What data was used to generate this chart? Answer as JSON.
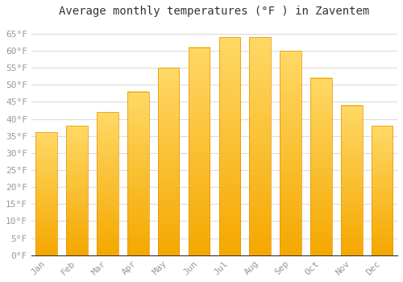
{
  "title": "Average monthly temperatures (°F ) in Zaventem",
  "months": [
    "Jan",
    "Feb",
    "Mar",
    "Apr",
    "May",
    "Jun",
    "Jul",
    "Aug",
    "Sep",
    "Oct",
    "Nov",
    "Dec"
  ],
  "values": [
    36,
    38,
    42,
    48,
    55,
    61,
    64,
    64,
    60,
    52,
    44,
    38
  ],
  "bar_color_bottom": "#F5A800",
  "bar_color_top": "#FFD966",
  "bar_edge_color": "#E89000",
  "background_color": "#ffffff",
  "grid_color": "#dddddd",
  "ylim": [
    0,
    68
  ],
  "yticks": [
    0,
    5,
    10,
    15,
    20,
    25,
    30,
    35,
    40,
    45,
    50,
    55,
    60,
    65
  ],
  "ytick_labels": [
    "0°F",
    "5°F",
    "10°F",
    "15°F",
    "20°F",
    "25°F",
    "30°F",
    "35°F",
    "40°F",
    "45°F",
    "50°F",
    "55°F",
    "60°F",
    "65°F"
  ],
  "title_fontsize": 10,
  "tick_fontsize": 8,
  "tick_color": "#999999",
  "font_family": "monospace",
  "bar_width": 0.7
}
